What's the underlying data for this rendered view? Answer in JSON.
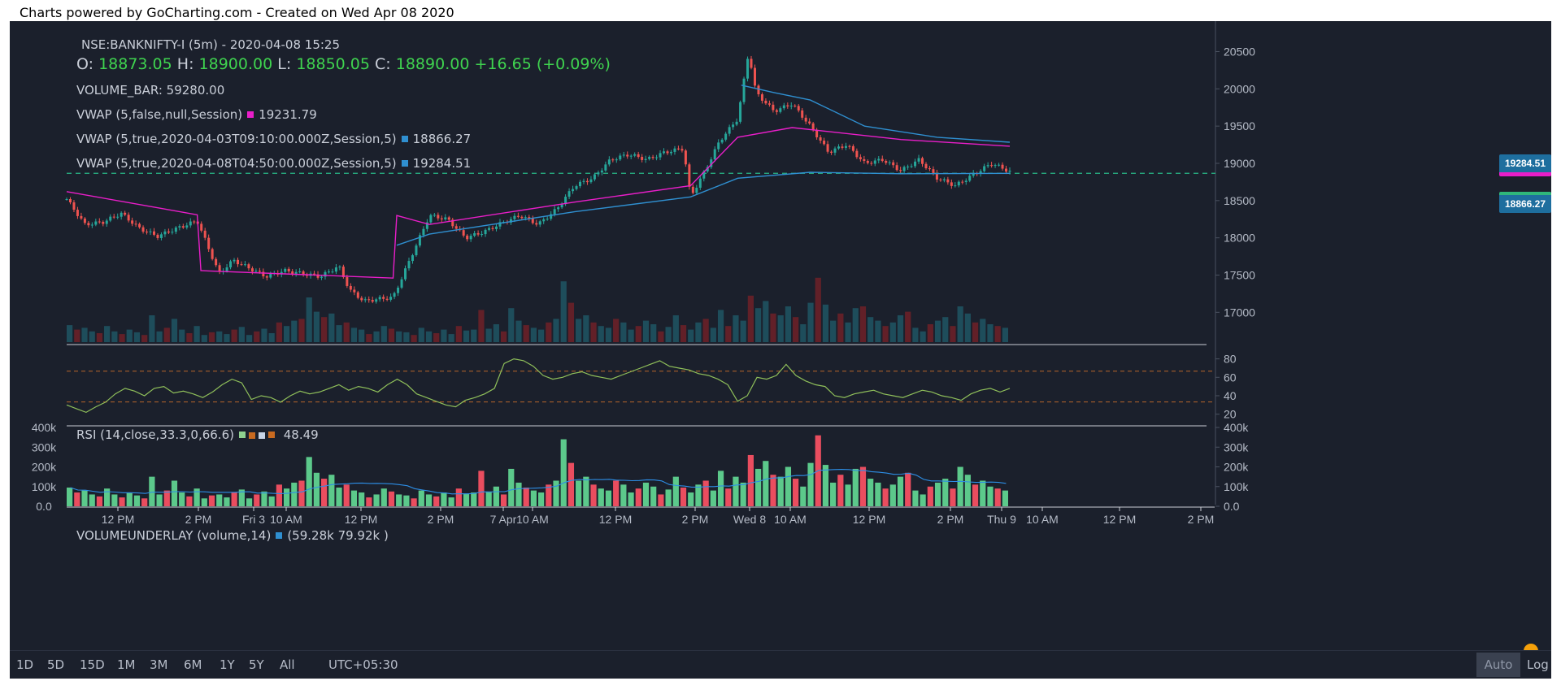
{
  "caption": "Charts powered by GoCharting.com - Created on Wed Apr 08 2020",
  "legend": {
    "symbol": "NSE:BANKNIFTY-I (5m) - 2020-04-08 15:25",
    "o_label": "O:",
    "o": "18873.05",
    "h_label": "H:",
    "h": "18900.00",
    "l_label": "L:",
    "l": "18850.05",
    "c_label": "C:",
    "c": "18890.00",
    "chg": "+16.65",
    "chg_pct": "(+0.09%)",
    "volume_label": "VOLUME_BAR:",
    "volume": "59280.00",
    "vwap1_label": "VWAP (5,false,null,Session)",
    "vwap1_value": "19231.79",
    "vwap2_label": "VWAP (5,true,2020-04-03T09:10:00.000Z,Session,5)",
    "vwap2_value": "18866.27",
    "vwap3_label": "VWAP (5,true,2020-04-08T04:50:00.000Z,Session,5)",
    "vwap3_value": "19284.51",
    "rsi_label": "RSI (14,close,33.3,0,66.6)",
    "rsi_value": "48.49",
    "volu_label": "VOLUMEUNDERLAY (volume,14)",
    "volu_value": "(59.28k 79.92k )"
  },
  "price_badges": {
    "upper": "19284.51",
    "lower": "18866.27"
  },
  "bottom_bar": {
    "ranges": [
      "1D",
      "5D",
      "15D",
      "1M",
      "3M",
      "6M",
      "1Y",
      "5Y",
      "All"
    ],
    "timezone": "UTC+05:30",
    "auto": "Auto",
    "log": "Log"
  },
  "colors": {
    "background": "#1b202c",
    "up": "#26a69a",
    "down": "#ef5350",
    "vwap_session": "#e91ec9",
    "vwap_anchored": "#2f8fd0",
    "rsi": "#8fbf5a",
    "vol_up": "#5cc98b",
    "vol_down": "#ea4d5f",
    "vol_ma": "#2d8ee6",
    "badge_upper": "#1e6e9e",
    "badge_lower": "#1e6e9e",
    "badge_upper_stripe": "#e91ec9",
    "badge_lower_stripe": "#2fb67a"
  },
  "chart_data": [
    {
      "type": "candlestick",
      "title": "NSE:BANKNIFTY-I (5m)",
      "categories": [
        "12 PM",
        "2 PM",
        "Fri 3",
        "10 AM",
        "12 PM",
        "2 PM",
        "7 Apr",
        "10 AM",
        "12 PM",
        "2 PM",
        "Wed 8",
        "10 AM",
        "12 PM",
        "2 PM",
        "Thu 9",
        "10 AM",
        "12 PM",
        "2 PM"
      ],
      "y_ticks": [
        20500,
        20000,
        19500,
        19000,
        18500,
        18000,
        17500,
        17000
      ],
      "ylim": [
        16600,
        20800
      ],
      "close_path": [
        [
          0,
          18520
        ],
        [
          0.05,
          18180
        ],
        [
          0.1,
          18210
        ],
        [
          0.15,
          18330
        ],
        [
          0.2,
          18130
        ],
        [
          0.25,
          18020
        ],
        [
          0.3,
          18120
        ],
        [
          0.36,
          18230
        ],
        [
          0.42,
          17520
        ],
        [
          0.46,
          17700
        ],
        [
          0.5,
          17600
        ],
        [
          0.55,
          17480
        ],
        [
          0.6,
          17560
        ],
        [
          0.65,
          17520
        ],
        [
          0.7,
          17480
        ],
        [
          0.75,
          17620
        ],
        [
          0.78,
          17300
        ],
        [
          0.82,
          17150
        ],
        [
          0.86,
          17180
        ],
        [
          0.9,
          17200
        ],
        [
          1.0,
          18300
        ],
        [
          1.05,
          18250
        ],
        [
          1.1,
          18000
        ],
        [
          1.15,
          18080
        ],
        [
          1.2,
          18200
        ],
        [
          1.25,
          18300
        ],
        [
          1.3,
          18180
        ],
        [
          1.35,
          18380
        ],
        [
          1.4,
          18700
        ],
        [
          1.45,
          18800
        ],
        [
          1.5,
          19050
        ],
        [
          1.55,
          19120
        ],
        [
          1.6,
          19050
        ],
        [
          1.65,
          19150
        ],
        [
          1.7,
          19200
        ],
        [
          1.72,
          18550
        ],
        [
          1.76,
          18900
        ],
        [
          1.8,
          19300
        ],
        [
          1.85,
          19600
        ],
        [
          1.88,
          20500
        ],
        [
          1.9,
          19950
        ],
        [
          1.95,
          19700
        ],
        [
          2.0,
          19800
        ],
        [
          2.05,
          19500
        ],
        [
          2.1,
          19150
        ],
        [
          2.15,
          19250
        ],
        [
          2.2,
          19000
        ],
        [
          2.25,
          19050
        ],
        [
          2.3,
          18900
        ],
        [
          2.35,
          19050
        ],
        [
          2.4,
          18800
        ],
        [
          2.45,
          18700
        ],
        [
          2.5,
          18850
        ],
        [
          2.55,
          19000
        ],
        [
          2.6,
          18890
        ]
      ],
      "series": [
        {
          "name": "VWAP (5,false,null,Session)",
          "value_last": 19231.79,
          "path": [
            [
              0,
              18620
            ],
            [
              0.36,
              18310
            ],
            [
              0.37,
              17560
            ],
            [
              0.9,
              17460
            ],
            [
              0.91,
              18300
            ],
            [
              1.0,
              18180
            ],
            [
              1.4,
              18480
            ],
            [
              1.72,
              18700
            ],
            [
              1.85,
              19350
            ],
            [
              2.0,
              19480
            ],
            [
              2.3,
              19320
            ],
            [
              2.6,
              19230
            ]
          ]
        },
        {
          "name": "VWAP (5,true,2020-04-03T09:10:00.000Z,Session,5)",
          "value_last": 18866.27,
          "path": [
            [
              0.91,
              17900
            ],
            [
              1.0,
              18050
            ],
            [
              1.4,
              18350
            ],
            [
              1.72,
              18550
            ],
            [
              1.85,
              18800
            ],
            [
              2.05,
              18880
            ],
            [
              2.3,
              18860
            ],
            [
              2.6,
              18866
            ]
          ]
        },
        {
          "name": "VWAP (5,true,2020-04-08T04:50:00.000Z,Session,5)",
          "value_last": 19284.51,
          "path": [
            [
              1.86,
              20050
            ],
            [
              1.95,
              19950
            ],
            [
              2.05,
              19850
            ],
            [
              2.2,
              19500
            ],
            [
              2.4,
              19350
            ],
            [
              2.6,
              19284
            ]
          ]
        }
      ],
      "horizontal_line": 18866.27
    },
    {
      "type": "line",
      "title": "RSI (14,close,33.3,0,66.6)",
      "y_ticks": [
        80,
        60,
        40,
        20
      ],
      "ylim": [
        10,
        92
      ],
      "bands": [
        33.3,
        66.6
      ],
      "values": [
        30,
        26,
        22,
        28,
        33,
        42,
        48,
        45,
        40,
        48,
        50,
        43,
        45,
        42,
        38,
        44,
        52,
        58,
        54,
        36,
        40,
        38,
        33,
        40,
        45,
        42,
        44,
        48,
        52,
        46,
        50,
        48,
        44,
        52,
        58,
        52,
        42,
        38,
        34,
        30,
        28,
        35,
        38,
        42,
        48,
        75,
        80,
        78,
        72,
        62,
        58,
        60,
        64,
        66,
        62,
        60,
        58,
        62,
        66,
        70,
        74,
        78,
        72,
        70,
        68,
        64,
        62,
        58,
        52,
        34,
        40,
        60,
        58,
        62,
        74,
        62,
        56,
        52,
        50,
        40,
        38,
        42,
        44,
        46,
        42,
        40,
        38,
        42,
        46,
        44,
        40,
        38,
        35,
        42,
        46,
        48,
        44,
        48
      ]
    },
    {
      "type": "bar",
      "title": "VOLUMEUNDERLAY (volume,14)",
      "y_ticks": [
        "400k",
        "300k",
        "200k",
        "100k",
        "0.0"
      ],
      "ylim": [
        0,
        400000
      ],
      "values": [
        95,
        70,
        80,
        60,
        50,
        90,
        60,
        45,
        70,
        55,
        40,
        150,
        60,
        80,
        130,
        70,
        50,
        90,
        40,
        55,
        60,
        45,
        70,
        85,
        40,
        60,
        75,
        50,
        110,
        90,
        120,
        130,
        250,
        170,
        140,
        160,
        95,
        110,
        80,
        70,
        45,
        60,
        90,
        75,
        60,
        55,
        40,
        80,
        60,
        50,
        70,
        45,
        90,
        65,
        70,
        180,
        75,
        100,
        60,
        190,
        120,
        95,
        80,
        70,
        110,
        130,
        340,
        220,
        130,
        150,
        110,
        90,
        80,
        130,
        110,
        70,
        90,
        120,
        100,
        60,
        85,
        150,
        95,
        70,
        110,
        130,
        80,
        180,
        90,
        150,
        120,
        260,
        190,
        230,
        160,
        150,
        200,
        140,
        100,
        220,
        360,
        210,
        120,
        160,
        110,
        190,
        200,
        140,
        120,
        90,
        110,
        150,
        170,
        80,
        60,
        100,
        120,
        140,
        90,
        200,
        160,
        110,
        130,
        100,
        90,
        80
      ]
    }
  ],
  "x_axis_labels": [
    "12 PM",
    "2 PM",
    "Fri 3",
    "10 AM",
    "12 PM",
    "2 PM",
    "7 Apr",
    "10 AM",
    "12 PM",
    "2 PM",
    "Wed 8",
    "10 AM",
    "12 PM",
    "2 PM",
    "Thu 9",
    "10 AM",
    "12 PM",
    "2 PM"
  ]
}
